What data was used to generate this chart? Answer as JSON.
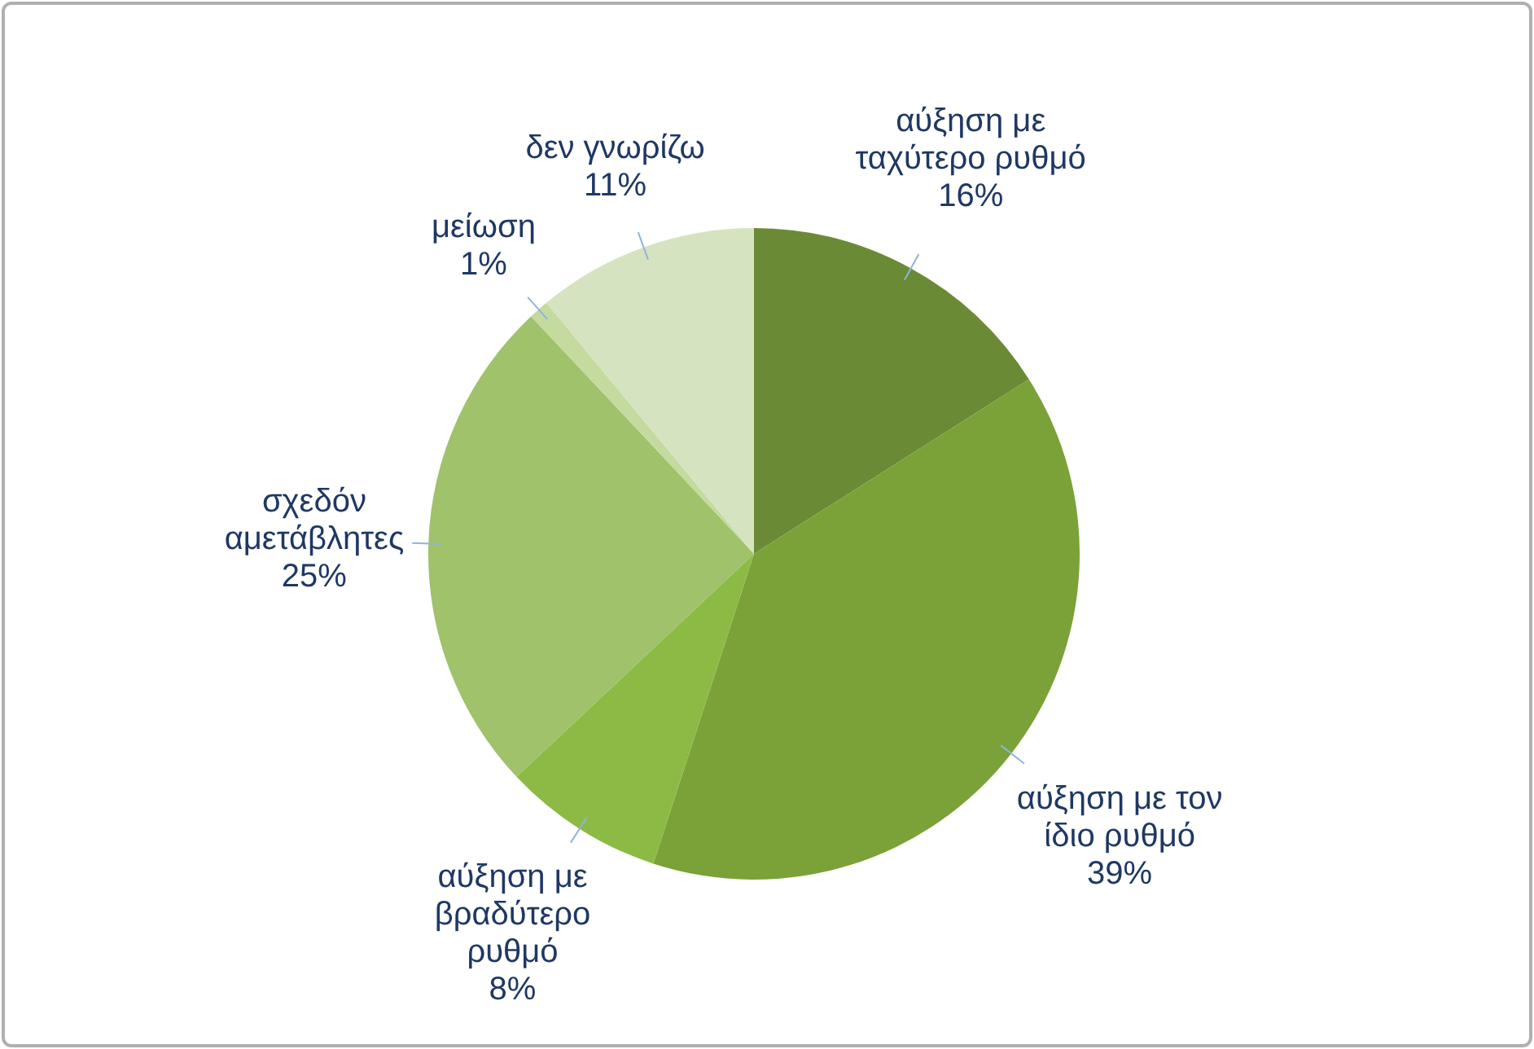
{
  "chart_data": {
    "type": "pie",
    "categories": [
      "αύξηση με ταχύτερο ρυθμό",
      "αύξηση με τον ίδιο ρυθμό",
      "αύξηση με βραδύτερο ρυθμό",
      "σχεδόν αμετάβλητες",
      "μείωση",
      "δεν γνωρίζω"
    ],
    "values": [
      16,
      39,
      8,
      25,
      1,
      11
    ],
    "value_labels": [
      "16%",
      "39%",
      "8%",
      "25%",
      "1%",
      "11%"
    ],
    "colors": [
      "#6b8a35",
      "#7aa238",
      "#8cbb45",
      "#9fc26a",
      "#c4da9f",
      "#d6e3c0"
    ],
    "legend": false
  }
}
